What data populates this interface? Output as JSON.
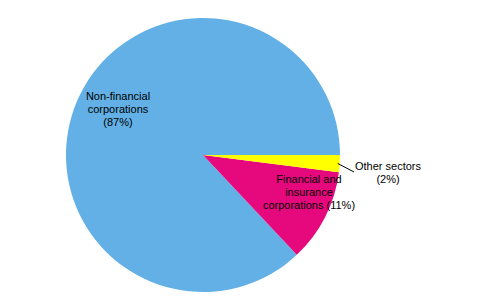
{
  "chart_data": {
    "type": "pie",
    "categories": [
      "Non-financial corporations",
      "Financial and insurance corporations",
      "Other sectors"
    ],
    "values": [
      87,
      11,
      2
    ],
    "value_labels": [
      "(87%)",
      "(11%)",
      "(2%)"
    ],
    "colors": [
      "#62b0e5",
      "#e6087d",
      "#ffff00"
    ],
    "data_labels": true
  }
}
